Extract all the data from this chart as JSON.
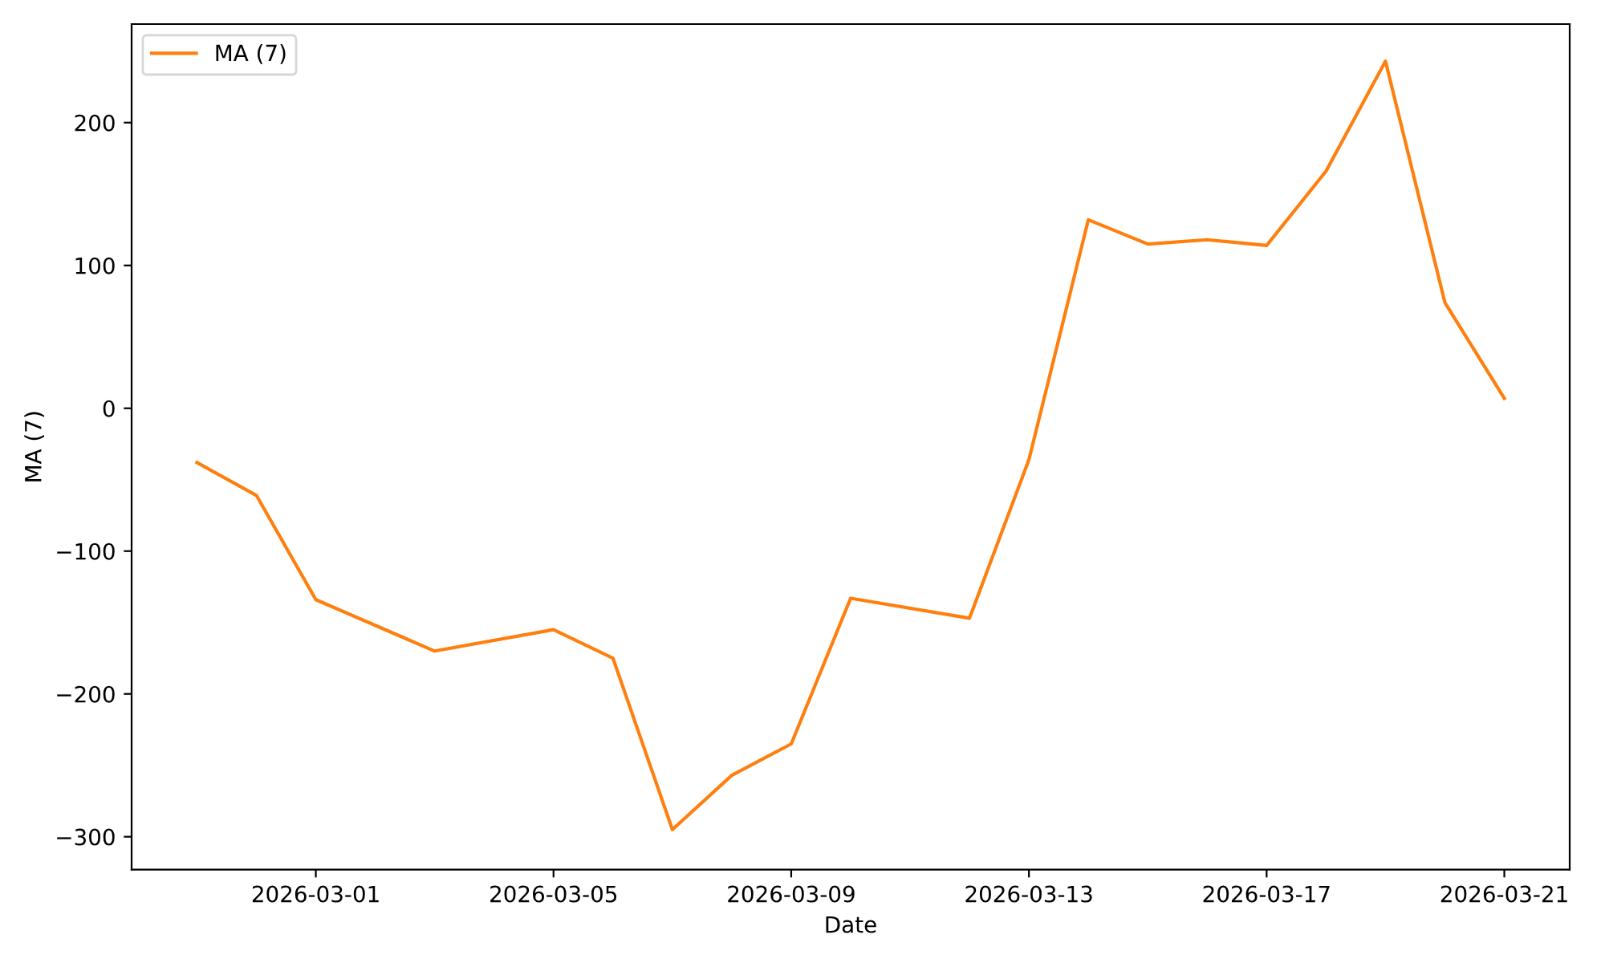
{
  "chart_data": {
    "type": "line",
    "xlabel": "Date",
    "ylabel": "MA (7)",
    "x": [
      "2026-02-27",
      "2026-02-28",
      "2026-03-01",
      "2026-03-03",
      "2026-03-05",
      "2026-03-06",
      "2026-03-07",
      "2026-03-08",
      "2026-03-09",
      "2026-03-10",
      "2026-03-12",
      "2026-03-13",
      "2026-03-14",
      "2026-03-15",
      "2026-03-16",
      "2026-03-17",
      "2026-03-18",
      "2026-03-19",
      "2026-03-20",
      "2026-03-21"
    ],
    "series": [
      {
        "name": "MA (7)",
        "color": "#ff7f0e",
        "values": [
          -38,
          -61,
          -134,
          -170,
          -155,
          -175,
          -295,
          -257,
          -235,
          -133,
          -147,
          -36,
          132,
          115,
          118,
          114,
          166,
          243,
          74,
          7
        ]
      }
    ],
    "xlim": [
      "2026-02-25T21:36",
      "2026-03-22T02:24"
    ],
    "xticks": [
      "2026-03-01",
      "2026-03-05",
      "2026-03-09",
      "2026-03-13",
      "2026-03-17",
      "2026-03-21"
    ],
    "ylim": [
      -323,
      269
    ],
    "yticks": [
      {
        "value": -300,
        "label": "−300"
      },
      {
        "value": -200,
        "label": "−200"
      },
      {
        "value": -100,
        "label": "−100"
      },
      0,
      100,
      200
    ],
    "grid": false,
    "legend": "top left",
    "line_style": "solid",
    "marker": "none"
  }
}
